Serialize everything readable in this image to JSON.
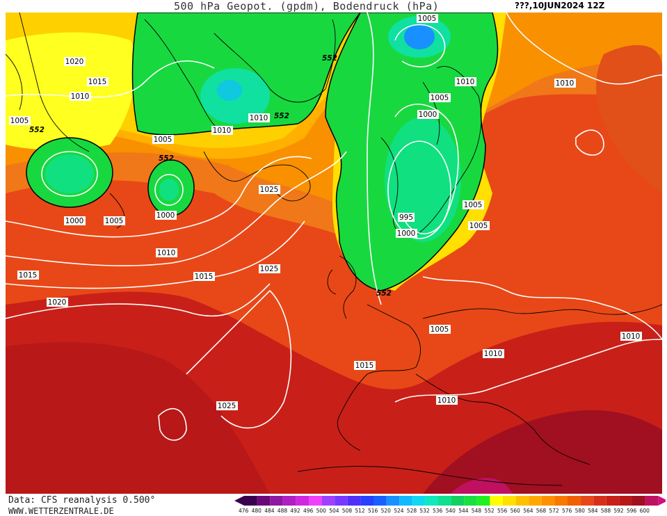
{
  "header": {
    "title": "500 hPa Geopot. (gpdm), Bodendruck (hPa)",
    "datetime": "???,10JUN2024  12Z"
  },
  "footer": {
    "source": "Data: CFS reanalysis 0.500°",
    "website": "WWW.WETTERZENTRALE.DE"
  },
  "legend": {
    "ticks": [
      "476",
      "480",
      "484",
      "488",
      "492",
      "496",
      "500",
      "504",
      "508",
      "512",
      "516",
      "520",
      "524",
      "528",
      "532",
      "536",
      "540",
      "544",
      "548",
      "552",
      "556",
      "560",
      "564",
      "568",
      "572",
      "576",
      "580",
      "584",
      "588",
      "592",
      "596",
      "600"
    ],
    "colors": [
      "#3a0050",
      "#6a0a7a",
      "#8e18a0",
      "#b020c0",
      "#d028e0",
      "#f040f8",
      "#a040ff",
      "#7838ff",
      "#5030f8",
      "#2840ff",
      "#1860ff",
      "#1890ff",
      "#10b8ff",
      "#10d8f0",
      "#10e8c0",
      "#10e090",
      "#10d060",
      "#18e040",
      "#20f020",
      "#ffff00",
      "#ffe000",
      "#ffc000",
      "#ffa800",
      "#ff9000",
      "#f87800",
      "#f06000",
      "#e84818",
      "#d83018",
      "#c82018",
      "#b81818",
      "#a01020",
      "#c01060"
    ]
  },
  "map_data": {
    "geopotential_label": "552",
    "pressure_labels": [
      "1005",
      "1020",
      "1015",
      "1010",
      "1005",
      "1005",
      "1000",
      "1005",
      "1000",
      "1010",
      "1015",
      "1020",
      "1025",
      "1025",
      "1015",
      "1010",
      "1010",
      "1005",
      "1000",
      "1005",
      "1010",
      "1005",
      "1000",
      "1010",
      "995",
      "1005",
      "1010",
      "1015",
      "1010",
      "1010",
      "1025",
      "1005",
      "1000"
    ]
  }
}
